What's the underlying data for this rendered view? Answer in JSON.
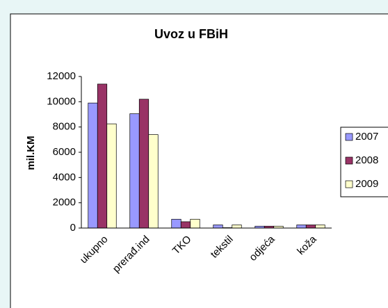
{
  "chart_data": {
    "type": "bar",
    "title": "Uvoz u FBiH",
    "y_label": "mil.KM",
    "categories": [
      "ukupno",
      "prerađ.ind",
      "TKO",
      "tekstil",
      "odjeća",
      "koža"
    ],
    "series": [
      {
        "name": "2007",
        "color": "#9999ff",
        "values": [
          9900,
          9050,
          700,
          250,
          150,
          250
        ]
      },
      {
        "name": "2008",
        "color": "#993366",
        "values": [
          11400,
          10200,
          500,
          30,
          150,
          250
        ]
      },
      {
        "name": "2009",
        "color": "#ffffcc",
        "values": [
          8250,
          7400,
          700,
          250,
          150,
          250
        ]
      }
    ],
    "ylim": [
      0,
      12000
    ],
    "yticks": [
      0,
      2000,
      4000,
      6000,
      8000,
      10000,
      12000
    ],
    "legend": "right"
  }
}
